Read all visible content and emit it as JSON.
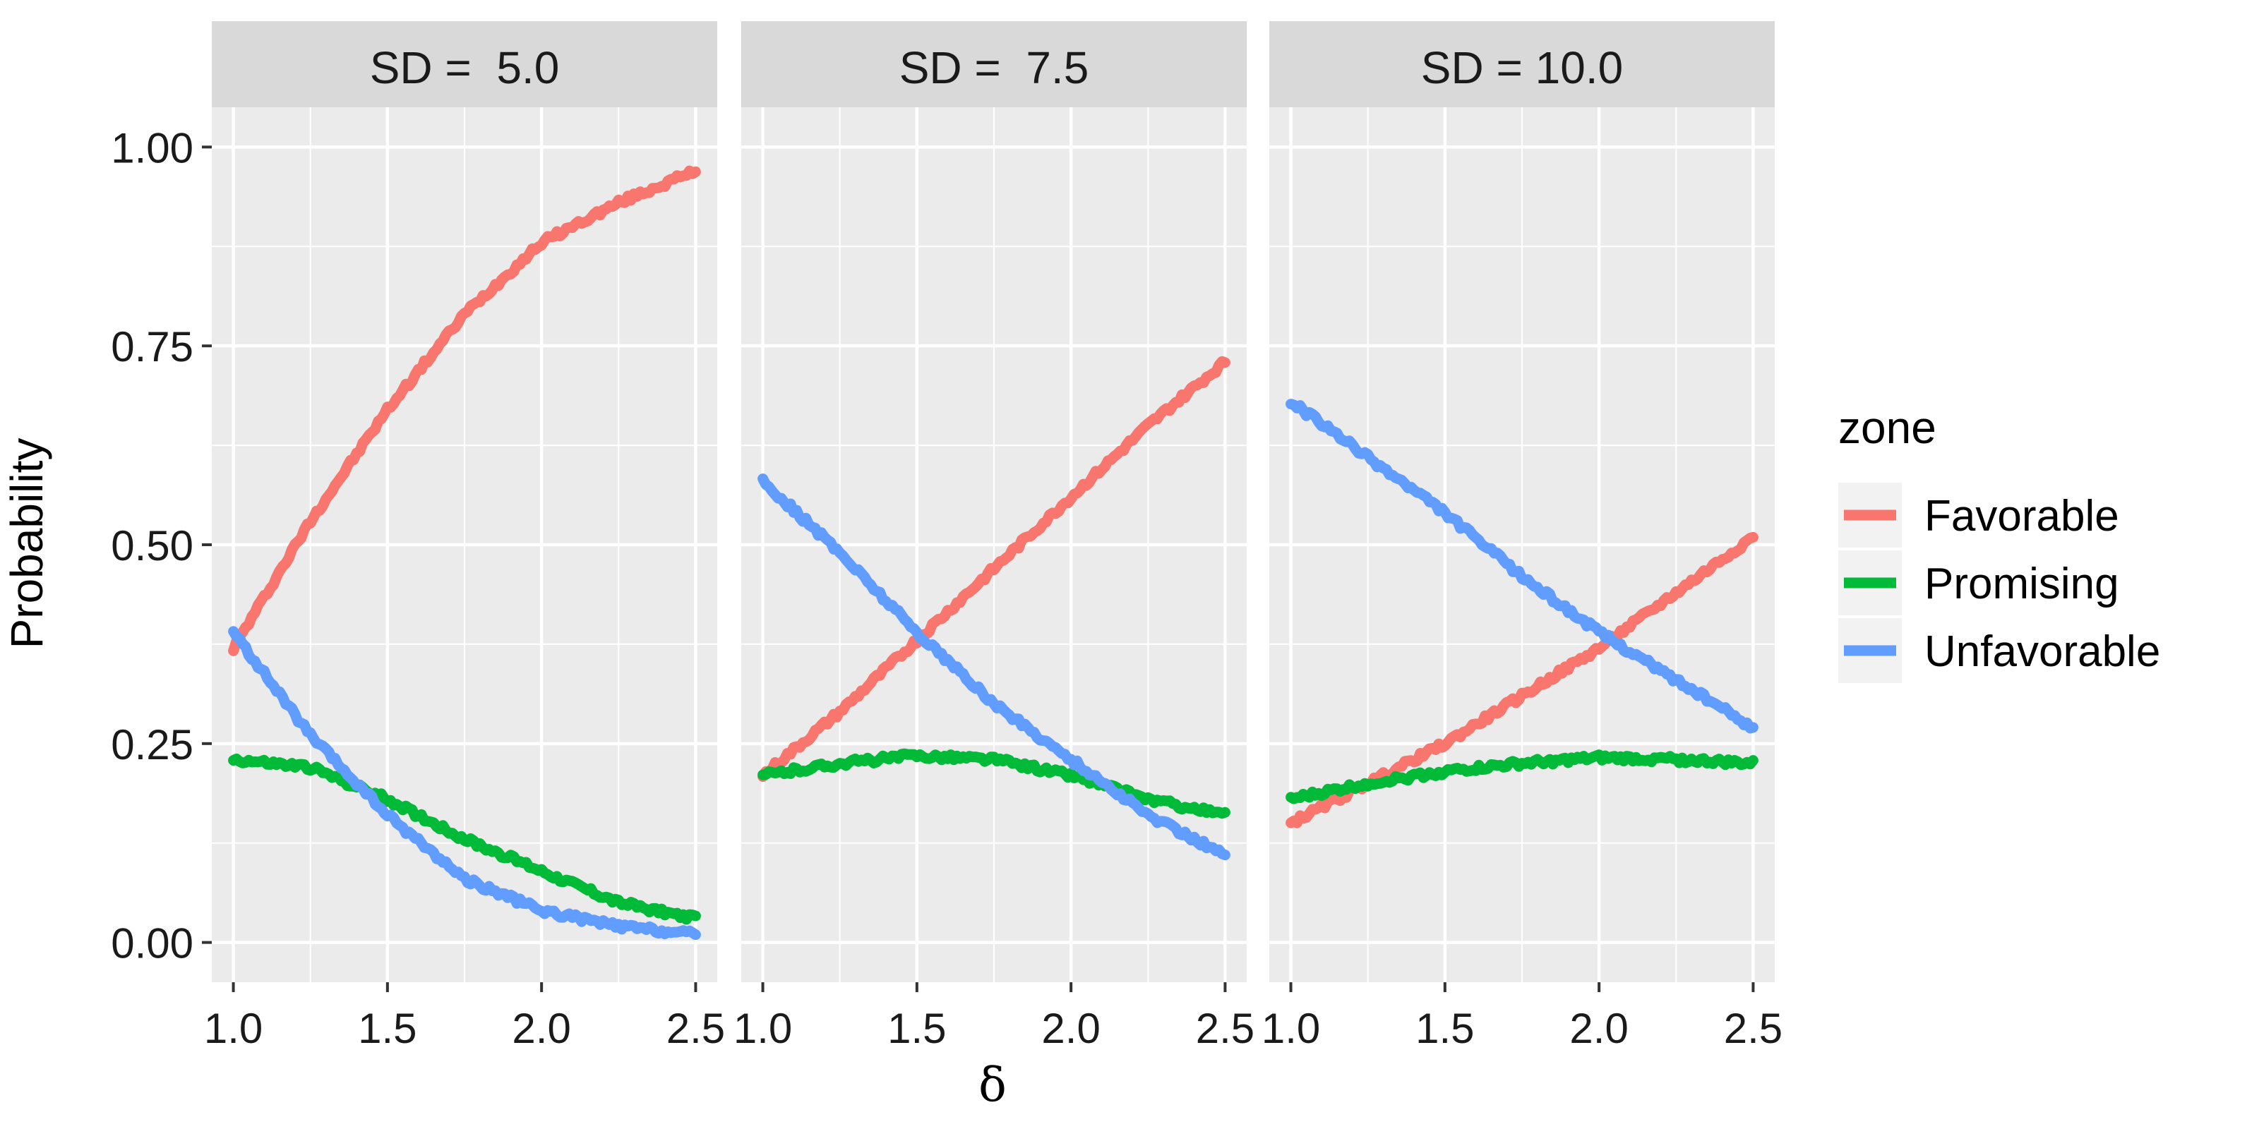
{
  "chart_data": {
    "type": "line",
    "facet_variable": "SD",
    "facets": [
      {
        "label": "SD =  5.0",
        "series": [
          {
            "name": "Favorable",
            "x": [
              1.0,
              1.25,
              1.5,
              1.75,
              2.0,
              2.25,
              2.5
            ],
            "values": [
              0.37,
              0.53,
              0.67,
              0.79,
              0.88,
              0.93,
              0.97
            ]
          },
          {
            "name": "Promising",
            "x": [
              1.0,
              1.25,
              1.5,
              1.75,
              2.0,
              2.25,
              2.5
            ],
            "values": [
              0.23,
              0.22,
              0.18,
              0.13,
              0.09,
              0.05,
              0.03
            ]
          },
          {
            "name": "Unfavorable",
            "x": [
              1.0,
              1.25,
              1.5,
              1.75,
              2.0,
              2.25,
              2.5
            ],
            "values": [
              0.39,
              0.26,
              0.16,
              0.08,
              0.04,
              0.02,
              0.01
            ]
          }
        ]
      },
      {
        "label": "SD =  7.5",
        "series": [
          {
            "name": "Favorable",
            "x": [
              1.0,
              1.25,
              1.5,
              1.75,
              2.0,
              2.25,
              2.5
            ],
            "values": [
              0.21,
              0.29,
              0.38,
              0.47,
              0.56,
              0.65,
              0.73
            ]
          },
          {
            "name": "Promising",
            "x": [
              1.0,
              1.25,
              1.5,
              1.75,
              2.0,
              2.25,
              2.5
            ],
            "values": [
              0.21,
              0.225,
              0.235,
              0.23,
              0.21,
              0.18,
              0.16
            ]
          },
          {
            "name": "Unfavorable",
            "x": [
              1.0,
              1.25,
              1.5,
              1.75,
              2.0,
              2.25,
              2.5
            ],
            "values": [
              0.58,
              0.49,
              0.39,
              0.3,
              0.23,
              0.16,
              0.11
            ]
          }
        ]
      },
      {
        "label": "SD = 10.0",
        "series": [
          {
            "name": "Favorable",
            "x": [
              1.0,
              1.25,
              1.5,
              1.75,
              2.0,
              2.25,
              2.5
            ],
            "values": [
              0.15,
              0.2,
              0.25,
              0.31,
              0.37,
              0.44,
              0.51
            ]
          },
          {
            "name": "Promising",
            "x": [
              1.0,
              1.25,
              1.5,
              1.75,
              2.0,
              2.25,
              2.5
            ],
            "values": [
              0.18,
              0.2,
              0.215,
              0.225,
              0.232,
              0.23,
              0.225
            ]
          },
          {
            "name": "Unfavorable",
            "x": [
              1.0,
              1.25,
              1.5,
              1.75,
              2.0,
              2.25,
              2.5
            ],
            "values": [
              0.68,
              0.61,
              0.54,
              0.46,
              0.39,
              0.33,
              0.27
            ]
          }
        ]
      }
    ],
    "xlabel": "δ",
    "ylabel": "Probability",
    "xlim": [
      0.93,
      2.57
    ],
    "ylim": [
      -0.05,
      1.05
    ],
    "x_ticks": [
      "1.0",
      "1.5",
      "2.0",
      "2.5"
    ],
    "x_tick_values": [
      1.0,
      1.5,
      2.0,
      2.5
    ],
    "y_ticks": [
      "0.00",
      "0.25",
      "0.50",
      "0.75",
      "1.00"
    ],
    "y_tick_values": [
      0.0,
      0.25,
      0.5,
      0.75,
      1.0
    ],
    "legend": {
      "title": "zone",
      "position": "right",
      "entries": [
        "Favorable",
        "Promising",
        "Unfavorable"
      ]
    },
    "colors": {
      "Favorable": "#F8766D",
      "Promising": "#00BA38",
      "Unfavorable": "#619CFF",
      "panel_background": "#EBEBEB",
      "strip_background": "#D9D9D9",
      "grid": "#FFFFFF"
    },
    "grid": true
  }
}
